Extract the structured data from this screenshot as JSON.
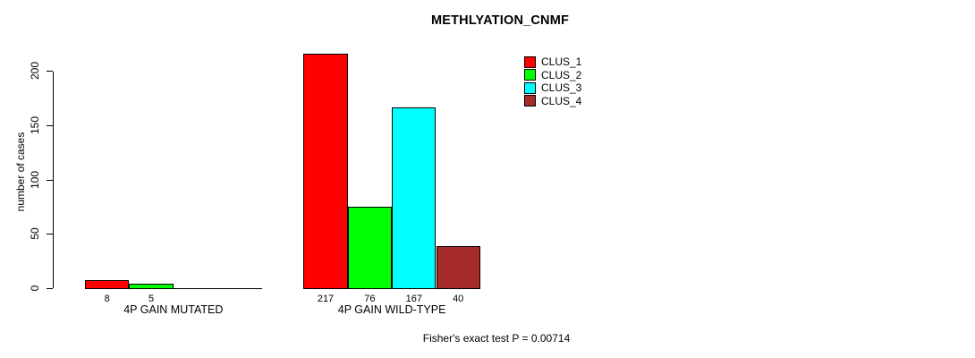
{
  "chart_data": {
    "type": "bar",
    "title": "METHLYATION_CNMF",
    "xlabel": "",
    "ylabel": "number of cases",
    "categories": [
      "4P GAIN MUTATED",
      "4P GAIN WILD-TYPE"
    ],
    "series": [
      {
        "name": "CLUS_1",
        "color": "#FF0000",
        "values": [
          8,
          217
        ]
      },
      {
        "name": "CLUS_2",
        "color": "#00FF00",
        "values": [
          5,
          76
        ]
      },
      {
        "name": "CLUS_3",
        "color": "#00FFFF",
        "values": [
          0,
          167
        ]
      },
      {
        "name": "CLUS_4",
        "color": "#A52A2A",
        "values": [
          0,
          40
        ]
      }
    ],
    "yticks": [
      0,
      50,
      100,
      150,
      200
    ],
    "ylim": [
      0,
      223
    ],
    "grid": false,
    "bar_labels_shown_for_positive_values_only": true,
    "legend": {
      "position": "top-right",
      "entries": [
        "CLUS_1",
        "CLUS_2",
        "CLUS_3",
        "CLUS_4"
      ]
    },
    "note": "Fisher's exact test P = 0.00714"
  }
}
